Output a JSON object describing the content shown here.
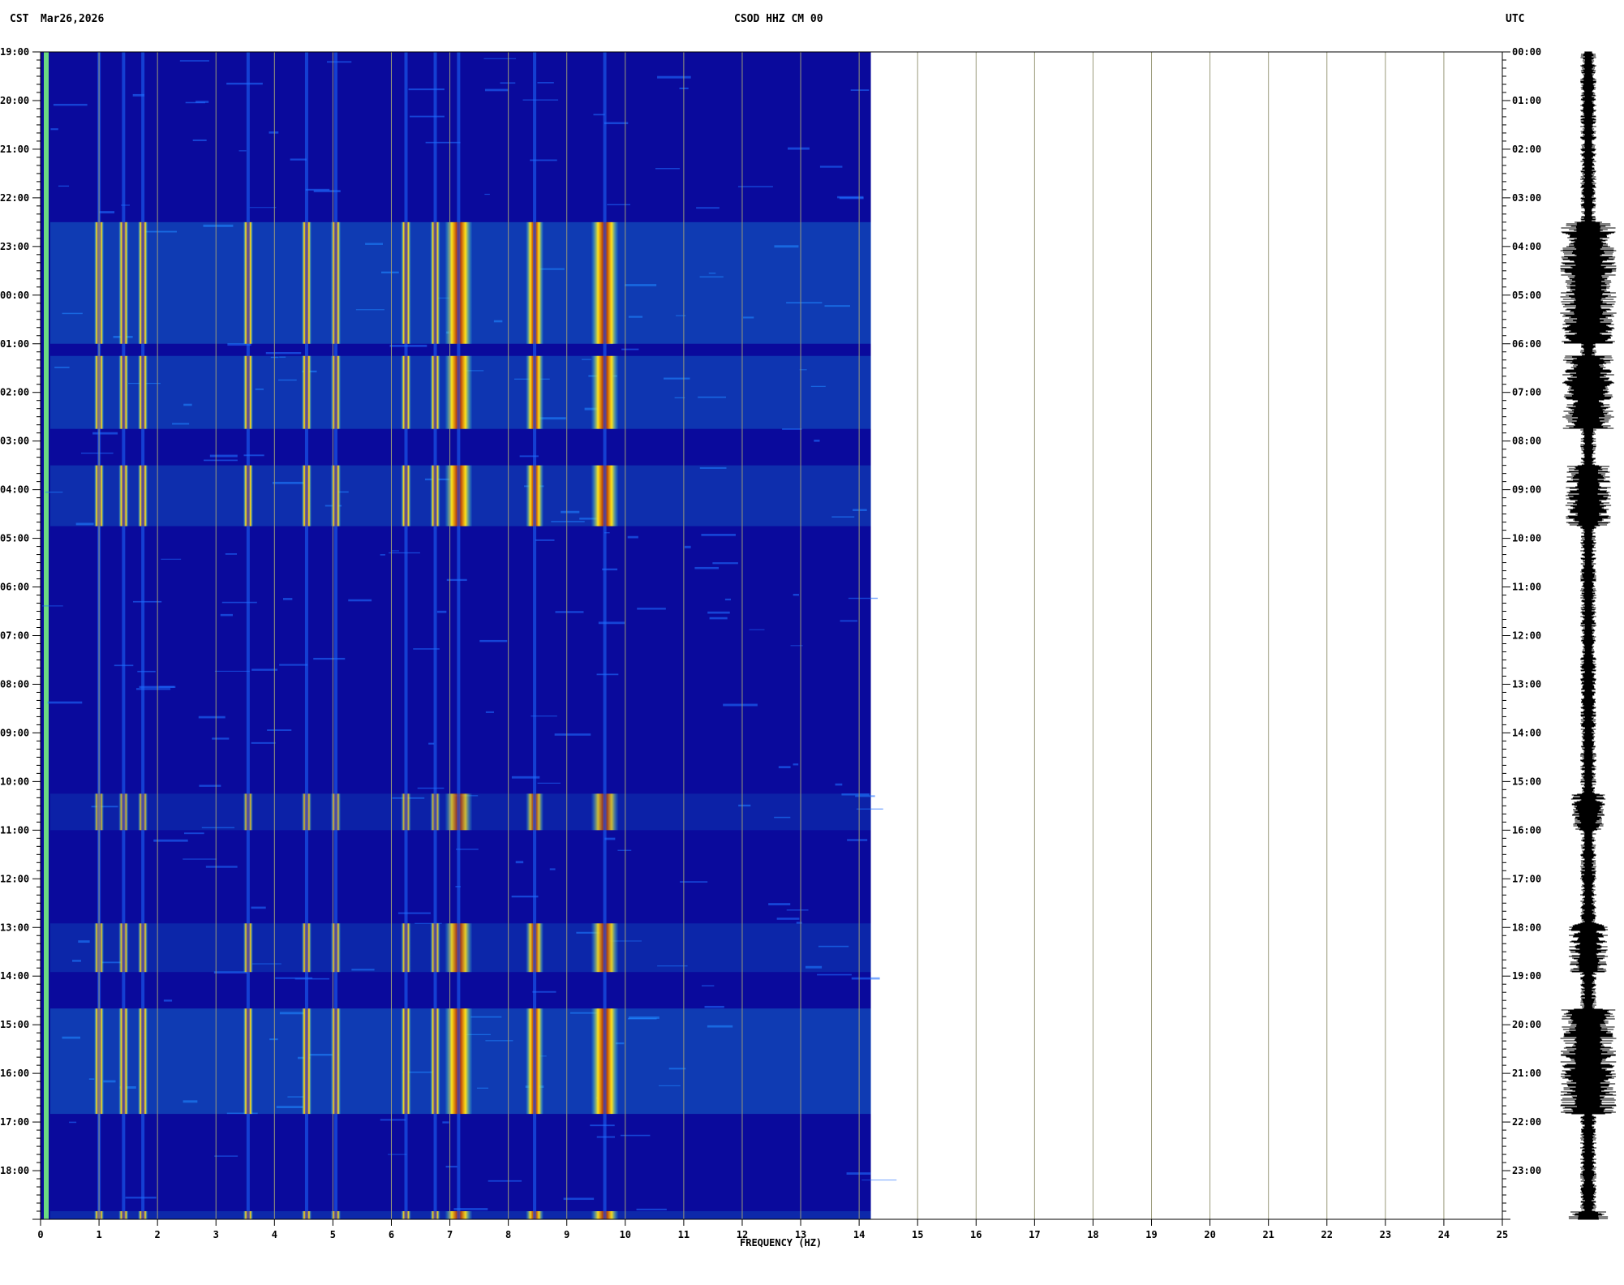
{
  "header": {
    "left_timezone": "CST",
    "date": "Mar26,2026",
    "station": "CSOD HHZ CM 00",
    "right_timezone": "UTC"
  },
  "chart_data": {
    "type": "heatmap",
    "title": "CSOD HHZ CM 00",
    "xlabel": "FREQUENCY (HZ)",
    "ylabel_left": "CST",
    "ylabel_right": "UTC",
    "xlim": [
      0,
      25
    ],
    "x_ticks": [
      "0",
      "1",
      "2",
      "3",
      "4",
      "5",
      "6",
      "7",
      "8",
      "9",
      "10",
      "11",
      "12",
      "13",
      "14",
      "15",
      "16",
      "17",
      "18",
      "19",
      "20",
      "21",
      "22",
      "23",
      "24",
      "25"
    ],
    "data_extent_hz": 14.2,
    "y_ticks_left": [
      "19:00",
      "20:00",
      "21:00",
      "22:00",
      "23:00",
      "00:00",
      "01:00",
      "02:00",
      "03:00",
      "04:00",
      "05:00",
      "06:00",
      "07:00",
      "08:00",
      "09:00",
      "10:00",
      "11:00",
      "12:00",
      "13:00",
      "14:00",
      "15:00",
      "16:00",
      "17:00",
      "18:00"
    ],
    "y_ticks_right": [
      "00:00",
      "01:00",
      "02:00",
      "03:00",
      "04:00",
      "05:00",
      "06:00",
      "07:00",
      "08:00",
      "09:00",
      "10:00",
      "11:00",
      "12:00",
      "13:00",
      "14:00",
      "15:00",
      "16:00",
      "17:00",
      "18:00",
      "19:00",
      "20:00",
      "21:00",
      "22:00",
      "23:00"
    ],
    "background_color": "#0a0a9c",
    "colormap": [
      "#0a0a9c",
      "#1e6cff",
      "#20d8ff",
      "#7cff7c",
      "#ffe21a",
      "#ff3a10",
      "#a00000"
    ],
    "spectral_lines_hz": [
      1.0,
      1.42,
      1.75,
      3.55,
      4.55,
      5.05,
      6.25,
      6.75,
      7.15,
      8.45,
      9.65
    ],
    "active_periods_utc": [
      {
        "start": "03:30",
        "end": "06:00",
        "intensity": 0.95
      },
      {
        "start": "06:15",
        "end": "07:45",
        "intensity": 0.85
      },
      {
        "start": "08:30",
        "end": "09:45",
        "intensity": 0.7
      },
      {
        "start": "15:15",
        "end": "16:00",
        "intensity": 0.45
      },
      {
        "start": "17:55",
        "end": "18:55",
        "intensity": 0.55
      },
      {
        "start": "19:40",
        "end": "21:50",
        "intensity": 0.95
      },
      {
        "start": "23:50",
        "end": "00:00",
        "intensity": 0.6
      }
    ]
  }
}
